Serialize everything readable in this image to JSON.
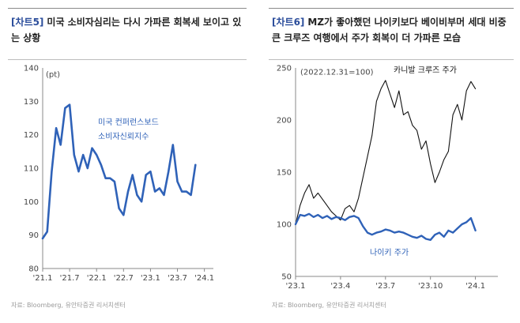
{
  "charts": [
    {
      "tag": "[차트5]",
      "title": "미국 소비자심리는 다시 가파른 회복세 보이고 있는 상황",
      "source": "자료: Bloomberg, 유안타증권 리서치센터",
      "chart_data": {
        "type": "line",
        "unit": "(pt)",
        "ylim": [
          80,
          140
        ],
        "yticks": [
          80,
          90,
          100,
          110,
          120,
          130,
          140
        ],
        "xlim": [
          0,
          38
        ],
        "xticks": [
          {
            "label": "'21.1",
            "pos": 0
          },
          {
            "label": "'21.7",
            "pos": 6
          },
          {
            "label": "'22.1",
            "pos": 12
          },
          {
            "label": "'22.7",
            "pos": 18
          },
          {
            "label": "'23.1",
            "pos": 24
          },
          {
            "label": "'23.7",
            "pos": 30
          },
          {
            "label": "'24.1",
            "pos": 36
          }
        ],
        "grid": false,
        "series": [
          {
            "name": "미국 컨퍼런스보드 소비자신뢰지수",
            "label_lines": [
              "미국 컨퍼런스보드",
              "소비자신뢰지수"
            ],
            "color": "#2f62b8",
            "values": [
              89,
              91,
              109,
              122,
              117,
              128,
              129,
              114,
              109,
              114,
              110,
              116,
              114,
              111,
              107,
              107,
              106,
              98,
              96,
              103,
              108,
              102,
              100,
              108,
              109,
              103,
              104,
              102,
              109,
              117,
              106,
              103,
              103,
              102,
              111
            ]
          }
        ]
      }
    },
    {
      "tag": "[차트6]",
      "title": "MZ가 좋아했던 나이키보다 베이비부머 세대 비중 큰 크루즈 여행에서 주가 회복이 더 가파른 모습",
      "source": "자료: Bloomberg, 유안타증권 리서치센터",
      "chart_data": {
        "type": "line",
        "note": "(2022.12.31=100)",
        "ylim": [
          50,
          250
        ],
        "yticks": [
          50,
          100,
          150,
          200,
          250
        ],
        "xlim": [
          0,
          13.5
        ],
        "xticks": [
          {
            "label": "'23.1",
            "pos": 0
          },
          {
            "label": "'23.4",
            "pos": 3
          },
          {
            "label": "'23.7",
            "pos": 6
          },
          {
            "label": "'23.10",
            "pos": 9
          },
          {
            "label": "'24.1",
            "pos": 12
          }
        ],
        "grid": false,
        "series": [
          {
            "name": "카니발 크루즈 주가",
            "color": "#111111",
            "x": [
              0,
              0.3,
              0.6,
              0.9,
              1.2,
              1.5,
              1.8,
              2.1,
              2.4,
              2.7,
              3.0,
              3.3,
              3.6,
              3.9,
              4.2,
              4.5,
              4.8,
              5.1,
              5.4,
              5.7,
              6.0,
              6.3,
              6.6,
              6.9,
              7.2,
              7.5,
              7.8,
              8.1,
              8.4,
              8.7,
              9.0,
              9.3,
              9.6,
              9.9,
              10.2,
              10.5,
              10.8,
              11.1,
              11.4,
              11.7,
              12.0
            ],
            "values": [
              100,
              118,
              130,
              138,
              125,
              130,
              124,
              118,
              112,
              108,
              104,
              115,
              118,
              112,
              125,
              145,
              165,
              185,
              218,
              230,
              238,
              225,
              212,
              228,
              205,
              208,
              195,
              190,
              172,
              180,
              158,
              140,
              150,
              162,
              170,
              205,
              215,
              200,
              228,
              237,
              230
            ]
          },
          {
            "name": "나이키 주가",
            "color": "#2f62b8",
            "x": [
              0,
              0.3,
              0.6,
              0.9,
              1.2,
              1.5,
              1.8,
              2.1,
              2.4,
              2.7,
              3.0,
              3.3,
              3.6,
              3.9,
              4.2,
              4.5,
              4.8,
              5.1,
              5.4,
              5.7,
              6.0,
              6.3,
              6.6,
              6.9,
              7.2,
              7.5,
              7.8,
              8.1,
              8.4,
              8.7,
              9.0,
              9.3,
              9.6,
              9.9,
              10.2,
              10.5,
              10.8,
              11.1,
              11.4,
              11.7,
              12.0
            ],
            "values": [
              100,
              109,
              108,
              110,
              107,
              109,
              106,
              108,
              105,
              107,
              106,
              104,
              107,
              108,
              106,
              98,
              92,
              90,
              92,
              93,
              95,
              94,
              92,
              93,
              92,
              90,
              88,
              87,
              89,
              86,
              85,
              90,
              92,
              88,
              94,
              92,
              96,
              100,
              102,
              106,
              94
            ]
          }
        ]
      }
    }
  ]
}
